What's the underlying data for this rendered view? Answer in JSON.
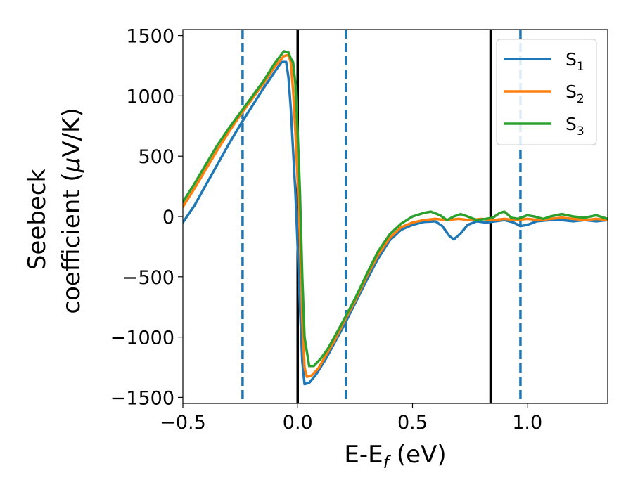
{
  "chart_data": {
    "type": "line",
    "xlabel": "E-E_f (eV)",
    "xlabel_main": "E-E",
    "xlabel_sub": "f",
    "xlabel_unit": " (eV)",
    "ylabel_line1": "Seebeck",
    "ylabel_line2_prefix": "coefficient  (",
    "ylabel_line2_mu": "μ",
    "ylabel_line2_suffix": "V/K)",
    "xlim": [
      -0.5,
      1.35
    ],
    "ylim": [
      -1550,
      1550
    ],
    "xticks": [
      -0.5,
      0.0,
      0.5,
      1.0
    ],
    "xtick_labels": [
      "−0.5",
      "0.0",
      "0.5",
      "1.0"
    ],
    "yticks": [
      -1500,
      -1000,
      -500,
      0,
      500,
      1000,
      1500
    ],
    "ytick_labels": [
      "−1500",
      "−1000",
      "−500",
      "0",
      "500",
      "1000",
      "1500"
    ],
    "legend_position": "top-right",
    "grid": false,
    "vlines_solid": [
      0.0,
      0.84
    ],
    "vlines_dashed": [
      -0.24,
      0.21,
      0.97
    ],
    "vline_solid_color": "#000000",
    "vline_dashed_color": "#1f77b4",
    "series": [
      {
        "name": "S1",
        "label_main": "S",
        "label_sub": "1",
        "color": "#1f77b4",
        "points": [
          [
            -0.5,
            -50
          ],
          [
            -0.45,
            90
          ],
          [
            -0.4,
            260
          ],
          [
            -0.35,
            430
          ],
          [
            -0.3,
            600
          ],
          [
            -0.25,
            760
          ],
          [
            -0.2,
            910
          ],
          [
            -0.15,
            1060
          ],
          [
            -0.1,
            1200
          ],
          [
            -0.07,
            1280
          ],
          [
            -0.05,
            1280
          ],
          [
            -0.04,
            1150
          ],
          [
            -0.03,
            900
          ],
          [
            -0.02,
            550
          ],
          [
            -0.01,
            200
          ],
          [
            0.0,
            -250
          ],
          [
            0.01,
            -750
          ],
          [
            0.02,
            -1200
          ],
          [
            0.03,
            -1390
          ],
          [
            0.05,
            -1380
          ],
          [
            0.08,
            -1310
          ],
          [
            0.12,
            -1190
          ],
          [
            0.16,
            -1050
          ],
          [
            0.2,
            -910
          ],
          [
            0.25,
            -720
          ],
          [
            0.3,
            -530
          ],
          [
            0.35,
            -350
          ],
          [
            0.4,
            -200
          ],
          [
            0.45,
            -110
          ],
          [
            0.5,
            -70
          ],
          [
            0.55,
            -45
          ],
          [
            0.6,
            -40
          ],
          [
            0.63,
            -80
          ],
          [
            0.66,
            -160
          ],
          [
            0.68,
            -190
          ],
          [
            0.71,
            -140
          ],
          [
            0.74,
            -70
          ],
          [
            0.78,
            -40
          ],
          [
            0.82,
            -50
          ],
          [
            0.86,
            -40
          ],
          [
            0.9,
            -30
          ],
          [
            0.94,
            -50
          ],
          [
            0.97,
            -80
          ],
          [
            1.0,
            -70
          ],
          [
            1.04,
            -40
          ],
          [
            1.1,
            -30
          ],
          [
            1.15,
            -30
          ],
          [
            1.2,
            -40
          ],
          [
            1.25,
            -30
          ],
          [
            1.3,
            -40
          ],
          [
            1.35,
            -30
          ]
        ]
      },
      {
        "name": "S2",
        "label_main": "S",
        "label_sub": "2",
        "color": "#ff7f0e",
        "points": [
          [
            -0.5,
            80
          ],
          [
            -0.45,
            230
          ],
          [
            -0.4,
            390
          ],
          [
            -0.35,
            550
          ],
          [
            -0.3,
            700
          ],
          [
            -0.25,
            840
          ],
          [
            -0.2,
            970
          ],
          [
            -0.15,
            1100
          ],
          [
            -0.1,
            1240
          ],
          [
            -0.06,
            1330
          ],
          [
            -0.04,
            1340
          ],
          [
            -0.03,
            1280
          ],
          [
            -0.02,
            1050
          ],
          [
            -0.01,
            700
          ],
          [
            0.0,
            300
          ],
          [
            0.01,
            -200
          ],
          [
            0.02,
            -850
          ],
          [
            0.03,
            -1250
          ],
          [
            0.04,
            -1330
          ],
          [
            0.06,
            -1320
          ],
          [
            0.09,
            -1260
          ],
          [
            0.12,
            -1160
          ],
          [
            0.16,
            -1030
          ],
          [
            0.2,
            -880
          ],
          [
            0.25,
            -700
          ],
          [
            0.3,
            -500
          ],
          [
            0.35,
            -320
          ],
          [
            0.4,
            -180
          ],
          [
            0.45,
            -90
          ],
          [
            0.5,
            -50
          ],
          [
            0.55,
            -30
          ],
          [
            0.6,
            -20
          ],
          [
            0.65,
            -30
          ],
          [
            0.7,
            -20
          ],
          [
            0.75,
            -30
          ],
          [
            0.8,
            -20
          ],
          [
            0.85,
            -30
          ],
          [
            0.9,
            -20
          ],
          [
            0.95,
            -30
          ],
          [
            1.0,
            -20
          ],
          [
            1.05,
            -30
          ],
          [
            1.1,
            -20
          ],
          [
            1.15,
            -10
          ],
          [
            1.2,
            -20
          ],
          [
            1.25,
            -30
          ],
          [
            1.3,
            -20
          ],
          [
            1.35,
            -30
          ]
        ]
      },
      {
        "name": "S3",
        "label_main": "S",
        "label_sub": "3",
        "color": "#2ca02c",
        "points": [
          [
            -0.5,
            120
          ],
          [
            -0.45,
            270
          ],
          [
            -0.4,
            430
          ],
          [
            -0.35,
            590
          ],
          [
            -0.3,
            730
          ],
          [
            -0.25,
            860
          ],
          [
            -0.2,
            990
          ],
          [
            -0.15,
            1120
          ],
          [
            -0.1,
            1270
          ],
          [
            -0.06,
            1370
          ],
          [
            -0.04,
            1360
          ],
          [
            -0.03,
            1310
          ],
          [
            -0.02,
            1280
          ],
          [
            -0.01,
            1100
          ],
          [
            0.0,
            700
          ],
          [
            0.01,
            200
          ],
          [
            0.02,
            -500
          ],
          [
            0.03,
            -1000
          ],
          [
            0.05,
            -1240
          ],
          [
            0.07,
            -1240
          ],
          [
            0.1,
            -1180
          ],
          [
            0.13,
            -1100
          ],
          [
            0.16,
            -1000
          ],
          [
            0.2,
            -860
          ],
          [
            0.25,
            -680
          ],
          [
            0.3,
            -480
          ],
          [
            0.35,
            -290
          ],
          [
            0.4,
            -150
          ],
          [
            0.45,
            -60
          ],
          [
            0.5,
            0
          ],
          [
            0.55,
            30
          ],
          [
            0.58,
            40
          ],
          [
            0.62,
            10
          ],
          [
            0.65,
            -30
          ],
          [
            0.68,
            0
          ],
          [
            0.71,
            20
          ],
          [
            0.74,
            0
          ],
          [
            0.78,
            -30
          ],
          [
            0.82,
            -20
          ],
          [
            0.85,
            -10
          ],
          [
            0.88,
            30
          ],
          [
            0.9,
            40
          ],
          [
            0.93,
            -10
          ],
          [
            0.96,
            -20
          ],
          [
            1.0,
            10
          ],
          [
            1.03,
            0
          ],
          [
            1.07,
            -20
          ],
          [
            1.1,
            0
          ],
          [
            1.15,
            20
          ],
          [
            1.2,
            0
          ],
          [
            1.25,
            -10
          ],
          [
            1.3,
            10
          ],
          [
            1.35,
            -20
          ]
        ]
      }
    ]
  }
}
